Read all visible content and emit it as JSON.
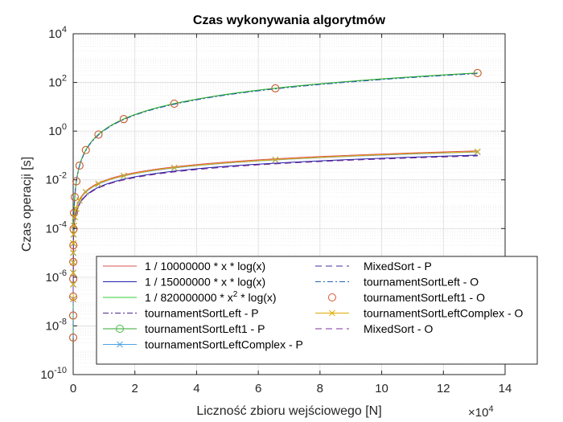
{
  "chart_data": {
    "type": "line",
    "title": "Czas wykonywania algorytmów",
    "xlabel": "Liczność zbioru wejściowego [N]",
    "ylabel": "Czas operacji [s]",
    "x_scale_label": "×10",
    "x_scale_exponent": "4",
    "x_tick_scale": 10000,
    "xlim": [
      0,
      140000
    ],
    "ylim": [
      1e-10,
      10000.0
    ],
    "yscale": "log",
    "grid": true,
    "x_ticks": [
      0,
      20000,
      40000,
      60000,
      80000,
      100000,
      120000,
      140000
    ],
    "x_tick_labels": [
      "0",
      "2",
      "4",
      "6",
      "8",
      "10",
      "12",
      "14"
    ],
    "y_ticks": [
      1e-10,
      1e-08,
      1e-06,
      0.0001,
      0.01,
      1.0,
      100.0,
      10000.0
    ],
    "y_tick_labels": [
      {
        "base": "10",
        "exp": "-10"
      },
      {
        "base": "10",
        "exp": "-8"
      },
      {
        "base": "10",
        "exp": "-6"
      },
      {
        "base": "10",
        "exp": "-4"
      },
      {
        "base": "10",
        "exp": "-2"
      },
      {
        "base": "10",
        "exp": "0"
      },
      {
        "base": "10",
        "exp": "2"
      },
      {
        "base": "10",
        "exp": "4"
      }
    ],
    "legend_position": "bottom",
    "sample_sizes": [
      2,
      4,
      8,
      16,
      32,
      64,
      128,
      256,
      512,
      1024,
      2048,
      4096,
      8192,
      16384,
      32768,
      65536,
      131072
    ],
    "series": [
      {
        "name": "1 / 10000000 * x * log(x)",
        "formula": "nlogn",
        "coef": 1e-07,
        "color": "#d9534f",
        "dash": "",
        "marker": "none"
      },
      {
        "name": "1 / 15000000 * x * log(x)",
        "formula": "nlogn",
        "coef": 6.667e-08,
        "color": "#1f1fa8",
        "dash": "",
        "marker": "none"
      },
      {
        "name": "1 / 820000000 * x² * log(x)",
        "name_parts": {
          "pre": "1 / 820000000 * x",
          "sup": "2",
          "post": " * log(x)"
        },
        "formula": "n2logn",
        "coef": 1.22e-09,
        "color": "#33cc33",
        "dash": "",
        "marker": "none"
      },
      {
        "name": "tournamentSortLeft - P",
        "formula": "n2logn",
        "coef": 1.16e-09,
        "color": "#4b2a8c",
        "dash": "7 3 2 3",
        "marker": "none"
      },
      {
        "name": "tournamentSortLeft1 - P",
        "formula": "n2logn",
        "coef": 1.2e-09,
        "color": "#33aa33",
        "dash": "",
        "marker": "circle",
        "marker_color": "#44bb44"
      },
      {
        "name": "tournamentSortLeftComplex - P",
        "formula": "nlogn",
        "coef": 9e-08,
        "color": "#4ba3e3",
        "dash": "",
        "marker": "x"
      },
      {
        "name": "MixedSort - P",
        "formula": "nlogn",
        "coef": 6.4e-08,
        "color": "#3b2fa0",
        "dash": "8 5",
        "marker": "none"
      },
      {
        "name": "tournamentSortLeft - O",
        "formula": "n2logn",
        "coef": 1.14e-09,
        "color": "#2a62b0",
        "dash": "7 3 2 3",
        "marker": "none"
      },
      {
        "name": "tournamentSortLeft1 - O",
        "formula": "n2logn",
        "coef": 1.2e-09,
        "color": "#d9532f",
        "dash": "none",
        "marker": "circle",
        "marker_color": "#d9532f"
      },
      {
        "name": "tournamentSortLeftComplex - O",
        "formula": "nlogn",
        "coef": 9.3e-08,
        "color": "#e0a800",
        "dash": "",
        "marker": "x"
      },
      {
        "name": "MixedSort - O",
        "formula": "nlogn",
        "coef": 6.2e-08,
        "color": "#7a2fa0",
        "dash": "8 5",
        "marker": "none"
      }
    ]
  }
}
